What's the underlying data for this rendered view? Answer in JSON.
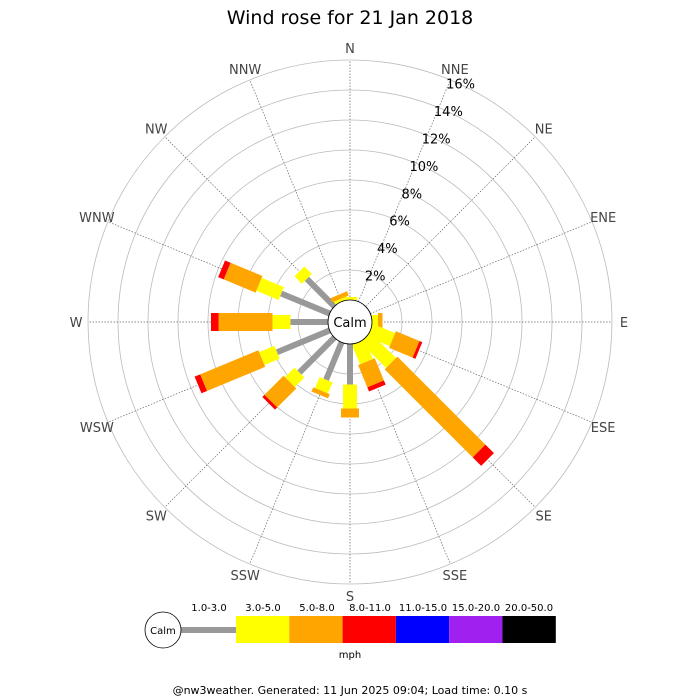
{
  "chart_data": {
    "type": "wind-rose",
    "title": "Wind rose for 21 Jan 2018",
    "calm_label": "Calm",
    "directions": [
      "N",
      "NNE",
      "NE",
      "ENE",
      "E",
      "ESE",
      "SE",
      "SSE",
      "S",
      "SSW",
      "SW",
      "WSW",
      "W",
      "WNW",
      "NW",
      "NNW"
    ],
    "radial_ticks": [
      "2%",
      "4%",
      "6%",
      "8%",
      "10%",
      "12%",
      "14%",
      "16%"
    ],
    "radial_tick_values": [
      2,
      4,
      6,
      8,
      10,
      12,
      14,
      16
    ],
    "rlim": [
      0,
      16
    ],
    "speed_bins": [
      {
        "label": "1.0-3.0",
        "color": "#999999"
      },
      {
        "label": "3.0-5.0",
        "color": "#ffff00"
      },
      {
        "label": "5.0-8.0",
        "color": "#ffa500"
      },
      {
        "label": "8.0-11.0",
        "color": "#ff0000"
      },
      {
        "label": "11.0-15.0",
        "color": "#0000ff"
      },
      {
        "label": "15.0-20.0",
        "color": "#a020f0"
      },
      {
        "label": "20.0-50.0",
        "color": "#000000"
      }
    ],
    "unit_label": "mph",
    "series": [
      {
        "direction": "N",
        "values": [
          0.0,
          0.2,
          0.0,
          0.0,
          0,
          0,
          0
        ]
      },
      {
        "direction": "NNE",
        "values": [
          0.0,
          0.0,
          0.0,
          0.0,
          0,
          0,
          0
        ]
      },
      {
        "direction": "NE",
        "values": [
          0.0,
          0.0,
          0.0,
          0.0,
          0,
          0,
          0
        ]
      },
      {
        "direction": "ENE",
        "values": [
          0.0,
          0.0,
          0.0,
          0.0,
          0,
          0,
          0
        ]
      },
      {
        "direction": "E",
        "values": [
          0.0,
          0.4,
          0.3,
          0.0,
          0,
          0,
          0
        ]
      },
      {
        "direction": "ESE",
        "values": [
          0.0,
          1.6,
          1.7,
          0.2,
          0,
          0,
          0
        ]
      },
      {
        "direction": "SE",
        "values": [
          0.0,
          2.4,
          8.3,
          0.8,
          0,
          0,
          0
        ]
      },
      {
        "direction": "SSE",
        "values": [
          0.0,
          1.4,
          1.6,
          0.3,
          0,
          0,
          0
        ]
      },
      {
        "direction": "S",
        "values": [
          2.7,
          1.6,
          0.6,
          0.0,
          0,
          0,
          0
        ]
      },
      {
        "direction": "SSW",
        "values": [
          2.7,
          0.8,
          0.3,
          0.0,
          0,
          0,
          0
        ]
      },
      {
        "direction": "SW",
        "values": [
          3.3,
          0.9,
          1.8,
          0.2,
          0,
          0,
          0
        ]
      },
      {
        "direction": "WSW",
        "values": [
          3.8,
          1.1,
          4.2,
          0.4,
          0,
          0,
          0
        ]
      },
      {
        "direction": "W",
        "values": [
          2.5,
          1.2,
          3.6,
          0.5,
          0,
          0,
          0
        ]
      },
      {
        "direction": "WNW",
        "values": [
          3.5,
          1.6,
          2.3,
          0.4,
          0,
          0,
          0
        ]
      },
      {
        "direction": "NW",
        "values": [
          2.6,
          0.7,
          0.0,
          0.0,
          0,
          0,
          0
        ]
      },
      {
        "direction": "NNW",
        "values": [
          0.0,
          0.2,
          0.3,
          0.0,
          0,
          0,
          0
        ]
      }
    ],
    "grid": true
  },
  "footer": "@nw3weather. Generated: 11 Jun 2025 09:04; Load time: 0.10 s"
}
